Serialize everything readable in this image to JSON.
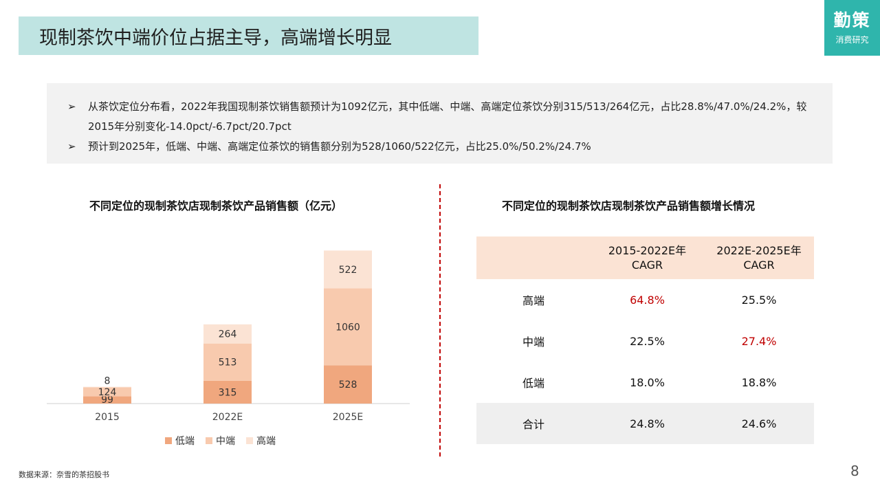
{
  "header": {
    "title": "现制茶饮中端价位占据主导，高端增长明显"
  },
  "logo": {
    "line1": "勤策",
    "line2": "消费研究"
  },
  "summary": {
    "bullets": [
      "从茶饮定位分布看，2022年我国现制茶饮销售额预计为1092亿元，其中低端、中端、高端定位茶饮分别315/513/264亿元，占比28.8%/47.0%/24.2%，较2015年分别变化-14.0pct/-6.7pct/20.7pct",
      "预计到2025年，低端、中端、高端定位茶饮的销售额分别为528/1060/522亿元，占比25.0%/50.2%/24.7%"
    ]
  },
  "chart_data": {
    "type": "bar",
    "stacked": true,
    "title": "不同定位的现制茶饮店现制茶饮产品销售额（亿元）",
    "categories": [
      "2015",
      "2022E",
      "2025E"
    ],
    "series": [
      {
        "name": "低端",
        "values": [
          99,
          315,
          528
        ],
        "color": "#f0a77e"
      },
      {
        "name": "中端",
        "values": [
          124,
          513,
          1060
        ],
        "color": "#f8caae"
      },
      {
        "name": "高端",
        "values": [
          8,
          264,
          522
        ],
        "color": "#fbe3d4"
      }
    ],
    "legend_position": "bottom",
    "grid": false
  },
  "table": {
    "title": "不同定位的现制茶饮店现制茶饮产品销售额增长情况",
    "headers": [
      "",
      "2015-2022E年\nCAGR",
      "2022E-2025E年\nCAGR"
    ],
    "rows": [
      {
        "label": "高端",
        "c1": "64.8%",
        "c2": "25.5%",
        "highlight": "c1"
      },
      {
        "label": "中端",
        "c1": "22.5%",
        "c2": "27.4%",
        "highlight": "c2"
      },
      {
        "label": "低端",
        "c1": "18.0%",
        "c2": "18.8%",
        "highlight": ""
      },
      {
        "label": "合计",
        "c1": "24.8%",
        "c2": "24.6%",
        "highlight": ""
      }
    ],
    "highlight_color": "#c00000"
  },
  "footer": {
    "source": "数据来源：奈雪的茶招股书",
    "page": "8"
  }
}
